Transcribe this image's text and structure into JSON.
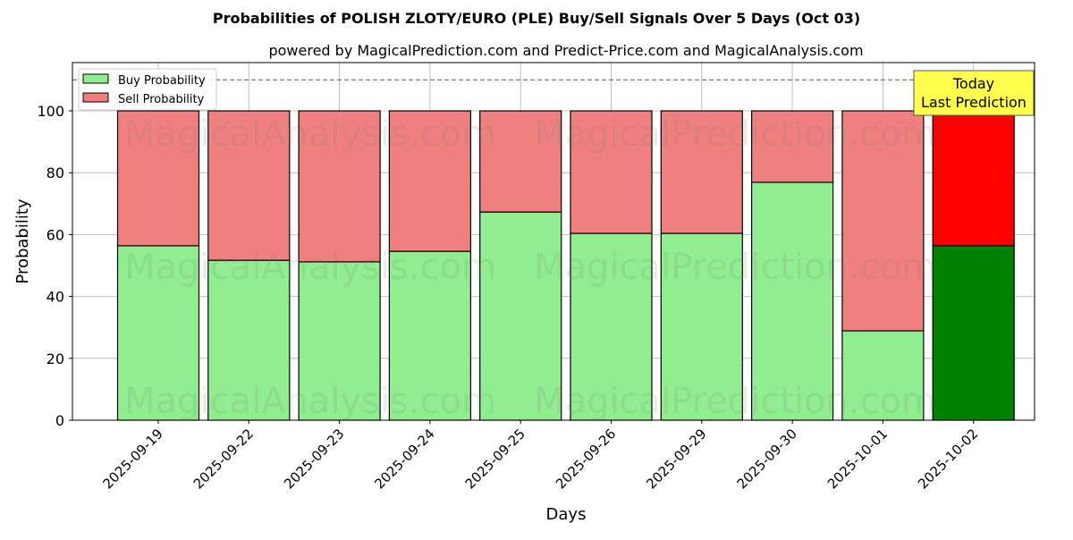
{
  "chart_data": {
    "type": "bar",
    "stacked": true,
    "title": "Probabilities of POLISH ZLOTY/EURO (PLE) Buy/Sell Signals Over 5 Days (Oct 03)",
    "subtitle": "powered by MagicalPrediction.com and Predict-Price.com and MagicalAnalysis.com",
    "xlabel": "Days",
    "ylabel": "Probability",
    "ylim": [
      0,
      115.6
    ],
    "yticks": [
      0,
      20,
      40,
      60,
      80,
      100
    ],
    "categories": [
      "2025-09-19",
      "2025-09-22",
      "2025-09-23",
      "2025-09-24",
      "2025-09-25",
      "2025-09-26",
      "2025-09-29",
      "2025-09-30",
      "2025-10-01",
      "2025-10-02"
    ],
    "series": [
      {
        "name": "Buy Probability",
        "values": [
          56.4,
          51.7,
          51.2,
          54.6,
          67.3,
          60.4,
          60.4,
          76.9,
          28.9,
          56.4
        ],
        "color": "#90ee90",
        "highlight_color": "#008000"
      },
      {
        "name": "Sell Probability",
        "values": [
          43.6,
          48.3,
          48.8,
          45.4,
          32.7,
          39.6,
          39.6,
          23.1,
          71.1,
          43.6
        ],
        "color": "#f08080",
        "highlight_color": "#ff0000"
      }
    ],
    "reference_line": 110,
    "legend": "top-left",
    "grid": true,
    "annotation": {
      "line1": "Today",
      "line2": "Last Prediction",
      "color": "#ffff4d"
    },
    "watermarks": [
      "MagicalAnalysis.com",
      "MagicalPrediction.com"
    ]
  }
}
